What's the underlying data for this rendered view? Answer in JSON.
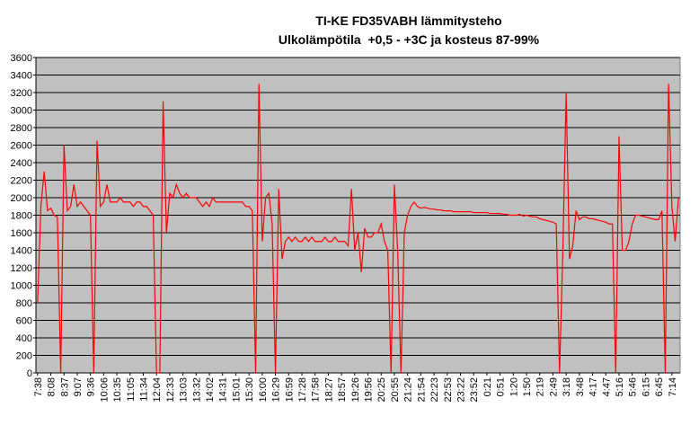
{
  "chart_data": {
    "type": "line",
    "title": "TI-KE FD35VABH lämmitysteho",
    "subtitle": "Ulkolämpötila  +0,5 - +3C ja kosteus 87-99%",
    "color": "#ff0000",
    "categories": [
      "7:38",
      null,
      null,
      null,
      "8:08",
      null,
      null,
      null,
      "8:37",
      null,
      null,
      null,
      "9:07",
      null,
      null,
      null,
      "9:36",
      null,
      null,
      null,
      "10:06",
      null,
      null,
      null,
      "10:35",
      null,
      null,
      null,
      "11:05",
      null,
      null,
      null,
      "11:34",
      null,
      null,
      null,
      "12:04",
      null,
      null,
      null,
      "12:33",
      null,
      null,
      null,
      "13:03",
      null,
      null,
      null,
      "13:32",
      null,
      null,
      null,
      "14:02",
      null,
      null,
      null,
      "14:31",
      null,
      null,
      null,
      "15:01",
      null,
      null,
      null,
      "15:30",
      null,
      null,
      null,
      "16:00",
      null,
      null,
      null,
      "16:29",
      null,
      null,
      null,
      "16:59",
      null,
      null,
      null,
      "17:28",
      null,
      null,
      null,
      "17:58",
      null,
      null,
      null,
      "18:27",
      null,
      null,
      null,
      "18:57",
      null,
      null,
      null,
      "19:26",
      null,
      null,
      null,
      "19:56",
      null,
      null,
      null,
      "20:25",
      null,
      null,
      null,
      "20:55",
      null,
      null,
      null,
      "21:24",
      null,
      null,
      null,
      "21:54",
      null,
      null,
      null,
      "22:23",
      null,
      null,
      null,
      "22:53",
      null,
      null,
      null,
      "23:22",
      null,
      null,
      null,
      "23:52",
      null,
      null,
      null,
      "0:21",
      null,
      null,
      null,
      "0:51",
      null,
      null,
      null,
      "1:20",
      null,
      null,
      null,
      "1:50",
      null,
      null,
      null,
      "2:19",
      null,
      null,
      null,
      "2:49",
      null,
      null,
      null,
      "3:18",
      null,
      null,
      null,
      "3:48",
      null,
      null,
      null,
      "4:17",
      null,
      null,
      null,
      "4:47",
      null,
      null,
      null,
      "5:16",
      null,
      null,
      null,
      "5:46",
      null,
      null,
      null,
      "6:15",
      null,
      null,
      null,
      "6:45",
      null,
      null,
      null,
      "7:14",
      null,
      null
    ],
    "values": [
      800,
      1900,
      2300,
      1850,
      1880,
      1800,
      1780,
      0,
      2600,
      1850,
      1900,
      2150,
      1900,
      1950,
      1900,
      1850,
      1800,
      0,
      2650,
      1900,
      1950,
      2150,
      1950,
      1950,
      1950,
      2000,
      1950,
      1950,
      1950,
      1900,
      1950,
      1950,
      1900,
      1900,
      1850,
      1800,
      0,
      0,
      3100,
      1600,
      2050,
      2000,
      2150,
      2050,
      2000,
      2050,
      2000,
      2000,
      2000,
      1950,
      1900,
      1950,
      1900,
      2000,
      1950,
      1950,
      1950,
      1950,
      1950,
      1950,
      1950,
      1950,
      1950,
      1900,
      1900,
      1850,
      0,
      3300,
      1500,
      2000,
      2050,
      1700,
      0,
      2100,
      1300,
      1500,
      1550,
      1500,
      1550,
      1500,
      1500,
      1550,
      1500,
      1550,
      1500,
      1500,
      1500,
      1550,
      1500,
      1500,
      1550,
      1500,
      1500,
      1500,
      1450,
      2100,
      1400,
      1600,
      1150,
      1650,
      1550,
      1550,
      1600,
      1600,
      1700,
      1500,
      1400,
      0,
      2150,
      1400,
      0,
      1600,
      1800,
      1900,
      1950,
      1900,
      1880,
      1890,
      1880,
      1870,
      1870,
      1860,
      1860,
      1850,
      1850,
      1850,
      1840,
      1840,
      1840,
      1840,
      1840,
      1840,
      1830,
      1830,
      1830,
      1830,
      1830,
      1820,
      1820,
      1820,
      1820,
      1810,
      1810,
      1800,
      1800,
      1800,
      1810,
      1790,
      1800,
      1790,
      1780,
      1780,
      1760,
      1750,
      1740,
      1730,
      1720,
      1700,
      0,
      1400,
      3200,
      1300,
      1450,
      1850,
      1750,
      1780,
      1780,
      1760,
      1760,
      1750,
      1740,
      1730,
      1720,
      1700,
      1700,
      0,
      2700,
      1400,
      1400,
      1500,
      1700,
      1800,
      1800,
      1790,
      1780,
      1770,
      1760,
      1750,
      1750,
      1850,
      0,
      3300,
      1900,
      1500,
      2000
    ],
    "ylim": [
      0,
      3600
    ],
    "yticks": [
      0,
      200,
      400,
      600,
      800,
      1000,
      1200,
      1400,
      1600,
      1800,
      2000,
      2200,
      2400,
      2600,
      2800,
      3000,
      3200,
      3400,
      3600
    ],
    "grid": true
  }
}
